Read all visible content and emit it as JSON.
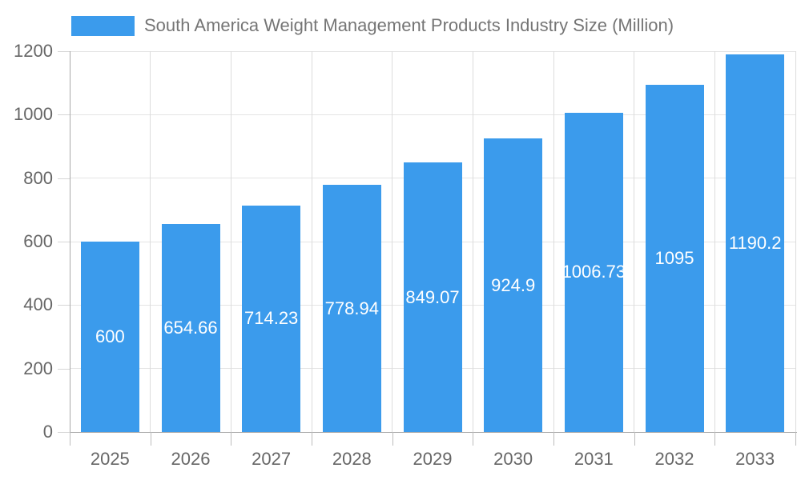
{
  "legend": {
    "label": "South America Weight Management Products Industry Size (Million)",
    "swatch_color": "#3B9BEC"
  },
  "chart_data": {
    "type": "bar",
    "title": "South America Weight Management Products Industry Size (Million)",
    "categories": [
      "2025",
      "2026",
      "2027",
      "2028",
      "2029",
      "2030",
      "2031",
      "2032",
      "2033"
    ],
    "values": [
      600,
      654.66,
      714.23,
      778.94,
      849.07,
      924.9,
      1006.73,
      1095,
      1190.2
    ],
    "value_labels": [
      "600",
      "654.66",
      "714.23",
      "778.94",
      "849.07",
      "924.9",
      "1006.73",
      "1095",
      "1190.2"
    ],
    "xlabel": "",
    "ylabel": "",
    "ylim": [
      0,
      1200
    ],
    "yticks": [
      0,
      200,
      400,
      600,
      800,
      1000,
      1200
    ],
    "grid": true,
    "legend_position": "top-left",
    "bar_color": "#3B9BEC",
    "value_label_color": "#ffffff",
    "tick_label_color": "#666666",
    "gridline_color": "#e3e3e3",
    "axis_line_color": "#a9a9a9"
  }
}
